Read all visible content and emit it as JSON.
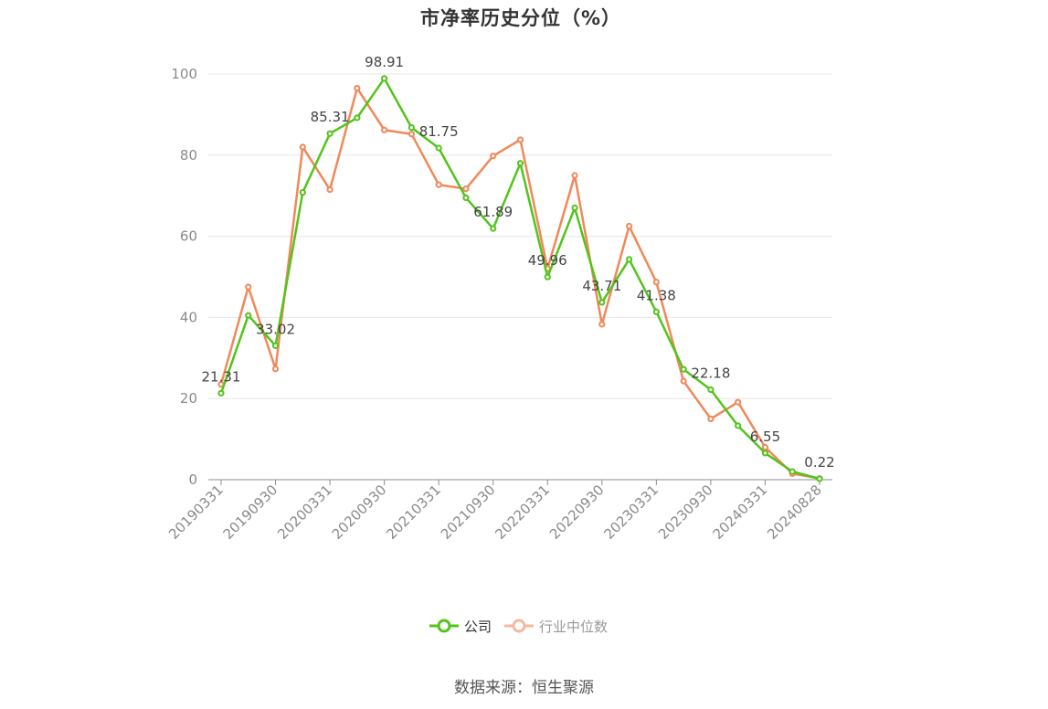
{
  "chart_data": {
    "type": "line",
    "title": "市净率历史分位（%）",
    "ylim": [
      0,
      100
    ],
    "yticks": [
      0,
      20,
      40,
      60,
      80,
      100
    ],
    "x": [
      "20190331",
      "20190630",
      "20190930",
      "20191231",
      "20200331",
      "20200630",
      "20200930",
      "20201231",
      "20210331",
      "20210630",
      "20210930",
      "20211231",
      "20220331",
      "20220630",
      "20220930",
      "20221231",
      "20230331",
      "20230630",
      "20230930",
      "20231231",
      "20240331",
      "20240630",
      "20240828"
    ],
    "xtick_labels": [
      "20190331",
      "20190930",
      "20200331",
      "20200930",
      "20210331",
      "20210930",
      "20220331",
      "20220930",
      "20230331",
      "20230930",
      "20240331",
      "20240828"
    ],
    "grid": true,
    "legend_position": "bottom",
    "series": [
      {
        "name": "公司",
        "color": "#52c41a",
        "values": [
          21.31,
          40.5,
          33.02,
          70.8,
          85.31,
          89.2,
          98.91,
          86.8,
          81.75,
          69.5,
          61.89,
          78.0,
          49.96,
          67.0,
          43.71,
          54.3,
          41.38,
          27.2,
          22.18,
          13.3,
          6.55,
          2.0,
          0.22
        ],
        "labels": [
          "21.31",
          null,
          "33.02",
          null,
          "85.31",
          null,
          "98.91",
          null,
          "81.75",
          null,
          "61.89",
          null,
          "49.96",
          null,
          "43.71",
          null,
          "41.38",
          null,
          "22.18",
          null,
          "6.55",
          null,
          "0.22"
        ]
      },
      {
        "name": "行业中位数",
        "color": "#f0885a",
        "values": [
          23.5,
          47.5,
          27.3,
          82.0,
          71.5,
          96.5,
          86.2,
          85.2,
          72.7,
          71.7,
          79.8,
          83.8,
          52.0,
          75.0,
          38.3,
          62.5,
          48.7,
          24.3,
          15.0,
          19.1,
          8.0,
          1.5,
          0.3
        ]
      }
    ]
  },
  "legend": {
    "items": [
      "公司",
      "行业中位数"
    ]
  },
  "source": "数据来源：恒生聚源"
}
